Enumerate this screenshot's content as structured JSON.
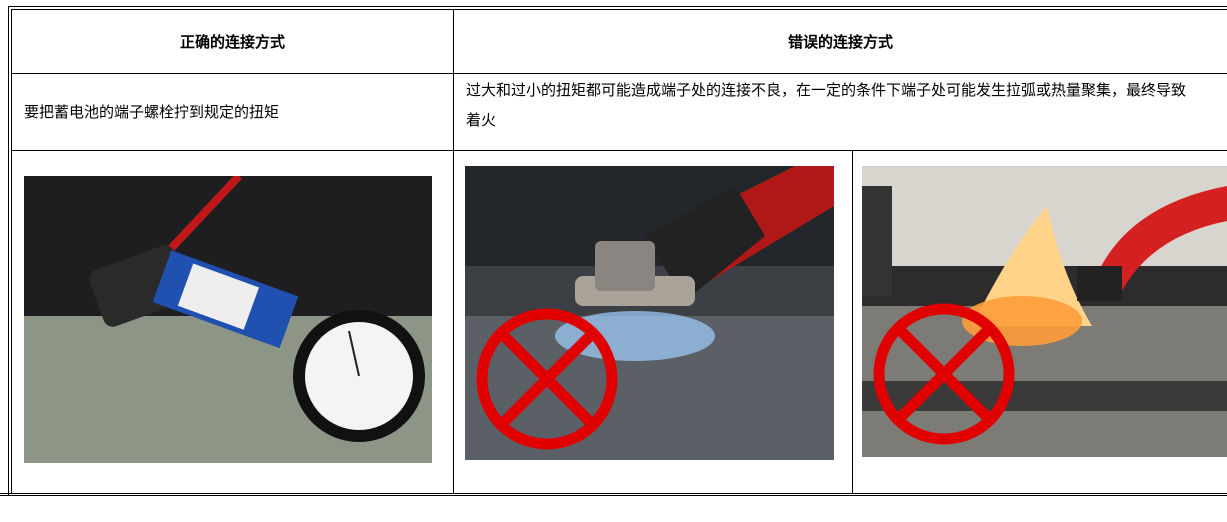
{
  "table": {
    "header": [
      "正确的连接方式",
      "错误的连接方式"
    ],
    "rows": [
      [
        "要把蓄电池的端子螺栓拧到规定的扭矩",
        "过大和过小的扭矩都可能造成端子处的连接不良，在一定的条件下端子处可能发生拉弧或热量聚集，最终导致着火"
      ]
    ]
  }
}
